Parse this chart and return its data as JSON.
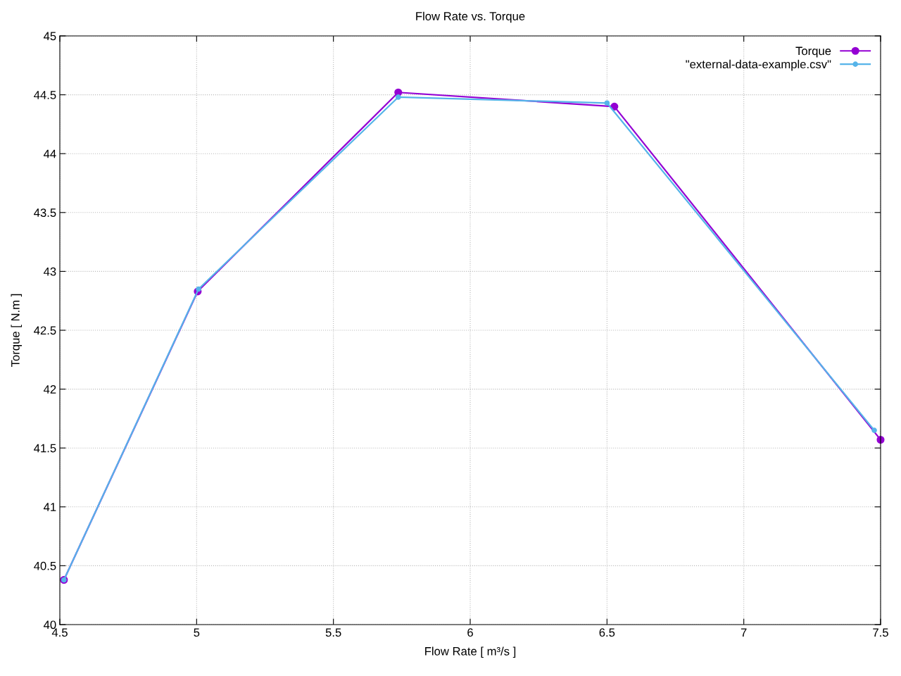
{
  "chart_data": {
    "type": "line",
    "title": "Flow Rate vs. Torque",
    "xlabel": "Flow Rate [ m³/s ]",
    "ylabel": "Torque [ N.m ]",
    "series": [
      {
        "name": "Torque",
        "color": "#9400d3",
        "x": [
          4.515,
          5.004,
          5.737,
          6.527,
          7.5
        ],
        "values": [
          40.38,
          42.83,
          44.52,
          44.4,
          41.57
        ]
      },
      {
        "name": "\"external-data-example.csv\"",
        "color": "#56b4e9",
        "x": [
          4.515,
          5.007,
          5.737,
          6.5,
          7.477
        ],
        "values": [
          40.38,
          42.85,
          44.48,
          44.43,
          41.65
        ]
      }
    ],
    "xlim": [
      4.5,
      7.5
    ],
    "xticks": [
      4.5,
      5,
      5.5,
      6,
      6.5,
      7,
      7.5
    ],
    "ylim": [
      40,
      45
    ],
    "yticks": [
      40,
      40.5,
      41,
      41.5,
      42,
      42.5,
      43,
      43.5,
      44,
      44.5,
      45
    ],
    "grid": true,
    "legend": "top right",
    "marker": "circle",
    "line_style": "solid"
  }
}
